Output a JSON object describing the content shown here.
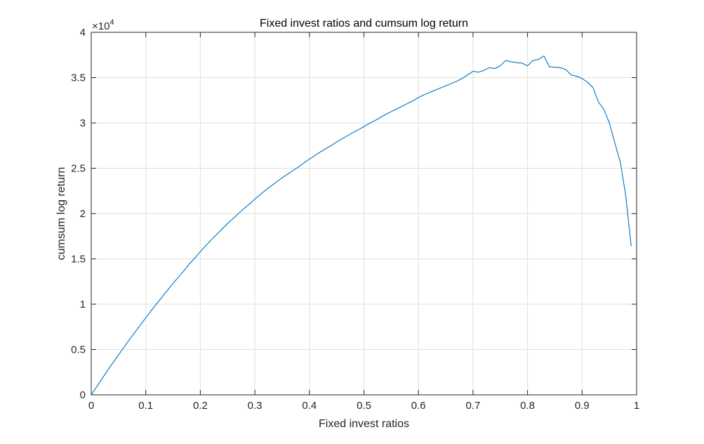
{
  "chart_data": {
    "type": "line",
    "title": "Fixed invest ratios and cumsum log return",
    "xlabel": "Fixed invest ratios",
    "ylabel": "cumsum log return",
    "y_multiplier_base": "×10",
    "y_multiplier_exponent": "4",
    "xlim": [
      0,
      1
    ],
    "ylim": [
      0,
      40000
    ],
    "grid": true,
    "x_ticks": [
      0,
      0.1,
      0.2,
      0.3,
      0.4,
      0.5,
      0.6,
      0.7,
      0.8,
      0.9,
      1
    ],
    "x_tick_labels": [
      "0",
      "0.1",
      "0.2",
      "0.3",
      "0.4",
      "0.5",
      "0.6",
      "0.7",
      "0.8",
      "0.9",
      "1"
    ],
    "y_ticks": [
      0,
      5000,
      10000,
      15000,
      20000,
      25000,
      30000,
      35000,
      40000
    ],
    "y_tick_labels": [
      "0",
      "0.5",
      "1",
      "1.5",
      "2",
      "2.5",
      "3",
      "3.5",
      "4"
    ],
    "series": [
      {
        "color": "#0072BD",
        "x": [
          0,
          0.01,
          0.02,
          0.03,
          0.04,
          0.05,
          0.06,
          0.07,
          0.08,
          0.09,
          0.1,
          0.11,
          0.12,
          0.13,
          0.14,
          0.15,
          0.16,
          0.17,
          0.18,
          0.19,
          0.2,
          0.21,
          0.22,
          0.23,
          0.24,
          0.25,
          0.26,
          0.27,
          0.28,
          0.29,
          0.3,
          0.31,
          0.32,
          0.33,
          0.34,
          0.35,
          0.36,
          0.37,
          0.38,
          0.39,
          0.4,
          0.41,
          0.42,
          0.43,
          0.44,
          0.45,
          0.46,
          0.47,
          0.48,
          0.49,
          0.5,
          0.51,
          0.52,
          0.53,
          0.54,
          0.55,
          0.56,
          0.57,
          0.58,
          0.59,
          0.6,
          0.61,
          0.62,
          0.63,
          0.64,
          0.65,
          0.66,
          0.67,
          0.68,
          0.69,
          0.7,
          0.71,
          0.72,
          0.73,
          0.74,
          0.75,
          0.76,
          0.77,
          0.78,
          0.79,
          0.8,
          0.81,
          0.82,
          0.83,
          0.84,
          0.85,
          0.86,
          0.87,
          0.88,
          0.89,
          0.9,
          0.91,
          0.92,
          0.93,
          0.94,
          0.95,
          0.96,
          0.97,
          0.98,
          0.99
        ],
        "values": [
          0,
          900,
          1800,
          2700,
          3550,
          4400,
          5250,
          6100,
          6900,
          7700,
          8500,
          9300,
          10050,
          10800,
          11550,
          12300,
          13000,
          13700,
          14450,
          15100,
          15800,
          16450,
          17100,
          17700,
          18300,
          18900,
          19450,
          20000,
          20550,
          21050,
          21600,
          22100,
          22600,
          23050,
          23500,
          23950,
          24350,
          24750,
          25150,
          25600,
          26000,
          26400,
          26800,
          27150,
          27500,
          27900,
          28250,
          28600,
          28950,
          29250,
          29600,
          29950,
          30250,
          30600,
          30950,
          31250,
          31550,
          31850,
          32150,
          32450,
          32800,
          33100,
          33350,
          33600,
          33850,
          34100,
          34350,
          34600,
          34900,
          35300,
          35700,
          35600,
          35800,
          36100,
          36000,
          36300,
          36900,
          36750,
          36650,
          36600,
          36300,
          36900,
          37000,
          37400,
          36200,
          36150,
          36100,
          35900,
          35300,
          35150,
          34900,
          34500,
          33900,
          32300,
          31500,
          30000,
          27800,
          25700,
          22000,
          16400
        ]
      }
    ]
  }
}
